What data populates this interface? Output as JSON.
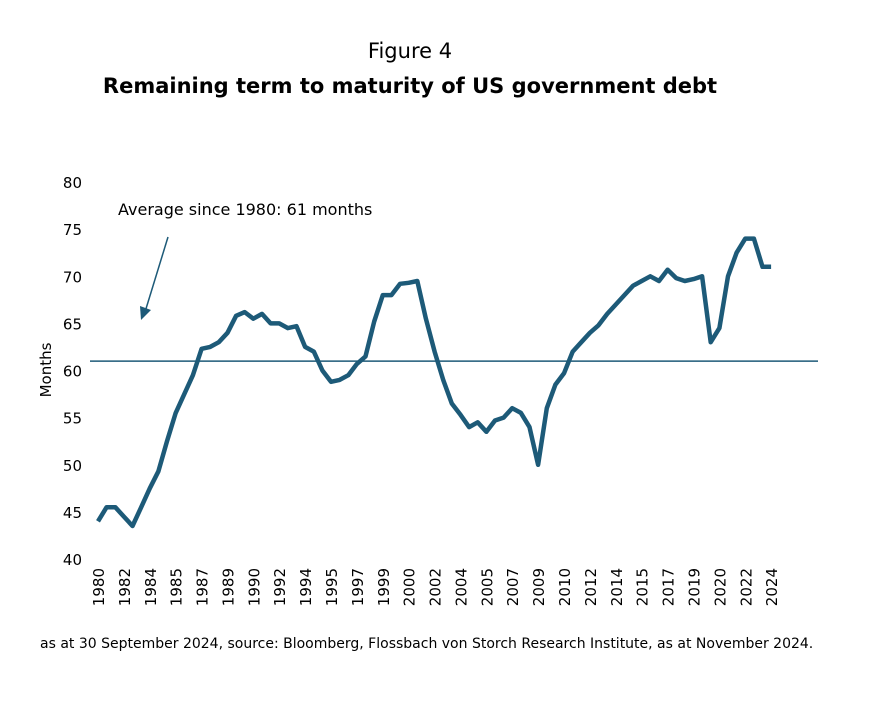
{
  "chart_data": {
    "type": "line",
    "title": "Figure 4",
    "subtitle": "Remaining term to maturity of US government debt",
    "y_label": "Months",
    "footnote": "as at 30 September 2024, source: Bloomberg, Flossbach von Storch Research Institute, as at November 2024.",
    "categories": [
      "1980",
      null,
      null,
      "1982",
      null,
      null,
      "1984",
      null,
      null,
      "1985",
      null,
      null,
      "1987",
      null,
      null,
      "1989",
      null,
      null,
      "1990",
      null,
      null,
      "1992",
      null,
      null,
      "1994",
      null,
      null,
      "1995",
      null,
      null,
      "1997",
      null,
      null,
      "1999",
      null,
      null,
      "2000",
      null,
      null,
      "2002",
      null,
      null,
      "2004",
      null,
      null,
      "2005",
      null,
      null,
      "2007",
      null,
      null,
      "2009",
      null,
      null,
      "2010",
      null,
      null,
      "2012",
      null,
      null,
      "2014",
      null,
      null,
      "2015",
      null,
      null,
      "2017",
      null,
      null,
      "2019",
      null,
      null,
      "2020",
      null,
      null,
      "2022",
      null,
      null,
      "2024"
    ],
    "series": [
      {
        "name": "Remaining term to maturity",
        "color": "#1d5a78",
        "values": [
          44,
          45.5,
          45.5,
          44.5,
          43.5,
          45.5,
          47.5,
          49.3,
          52.5,
          55.5,
          57.5,
          59.5,
          62.3,
          62.5,
          63,
          64,
          65.8,
          66.2,
          65.5,
          66,
          65,
          65,
          64.5,
          64.7,
          62.5,
          62,
          60,
          58.8,
          59,
          59.5,
          60.7,
          61.5,
          65.2,
          68,
          68,
          69.2,
          69.3,
          69.5,
          65.5,
          62,
          59,
          56.5,
          55.3,
          54,
          54.5,
          53.5,
          54.7,
          55,
          56,
          55.5,
          54,
          50,
          56,
          58.5,
          59.7,
          62,
          63,
          64,
          64.8,
          66,
          67,
          68,
          69,
          69.5,
          70,
          69.5,
          70.7,
          69.8,
          69.5,
          69.7,
          70,
          63,
          64.5,
          70,
          72.5,
          74,
          74,
          71,
          71
        ]
      }
    ],
    "reference_line": {
      "value": 61,
      "label": "Average since 1980: 61 months",
      "color": "#1d5a78"
    },
    "ylim": [
      40,
      80
    ],
    "yticks": [
      40,
      45,
      50,
      55,
      60,
      65,
      70,
      75,
      80
    ],
    "grid": false
  }
}
